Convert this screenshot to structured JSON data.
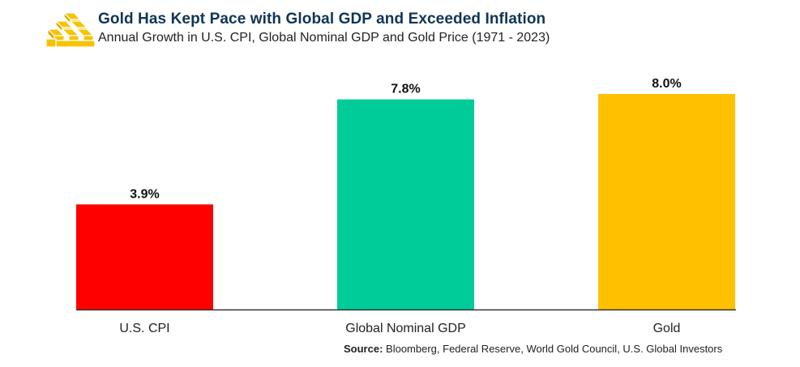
{
  "header": {
    "logo_icon": "gold-bars-icon",
    "title": "Gold Has Kept Pace with Global GDP and Exceeded Inflation",
    "subtitle": "Annual Growth in U.S. CPI, Global Nominal GDP and Gold Price (1971 - 2023)"
  },
  "footer": {
    "source_label": "Source:",
    "source_text": "Bloomberg, Federal Reserve, World Gold Council, U.S. Global Investors"
  },
  "chart_data": {
    "type": "bar",
    "title": "Gold Has Kept Pace with Global GDP and Exceeded Inflation",
    "subtitle": "Annual Growth in U.S. CPI, Global Nominal GDP and Gold Price (1971 - 2023)",
    "xlabel": "",
    "ylabel": "",
    "categories": [
      "U.S. CPI",
      "Global Nominal GDP",
      "Gold"
    ],
    "values": [
      3.9,
      7.8,
      8.0
    ],
    "data_labels": [
      "3.9%",
      "7.8%",
      "8.0%"
    ],
    "colors": [
      "#ff0000",
      "#00cc99",
      "#ffc000"
    ],
    "ylim": [
      0,
      8.0
    ],
    "grid": false,
    "legend": "none",
    "y_axis_visible": false
  }
}
